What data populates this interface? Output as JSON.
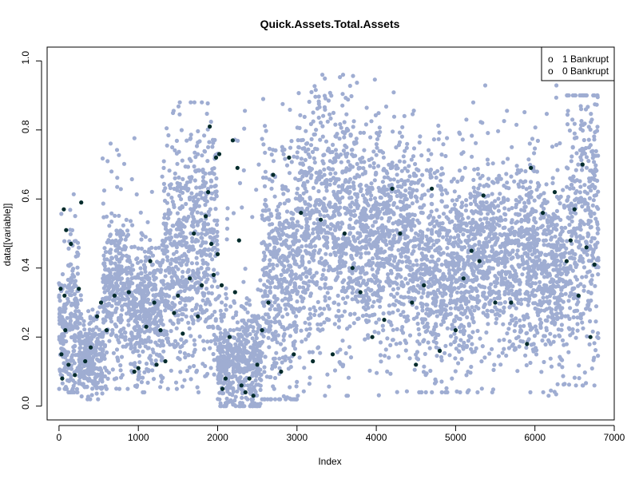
{
  "chart_data": {
    "type": "scatter",
    "title": "Quick.Assets.Total.Assets",
    "xlabel": "Index",
    "ylabel": "data[[variable]]",
    "xlim": [
      -150,
      7000
    ],
    "ylim": [
      -0.04,
      1.04
    ],
    "xticks": [
      0,
      1000,
      2000,
      3000,
      4000,
      5000,
      6000,
      7000
    ],
    "yticks": [
      0.0,
      0.2,
      0.4,
      0.6,
      0.8,
      1.0
    ],
    "xtick_labels": [
      "0",
      "1000",
      "2000",
      "3000",
      "4000",
      "5000",
      "6000",
      "7000"
    ],
    "ytick_labels": [
      "0.0",
      "0.2",
      "0.4",
      "0.6",
      "0.8",
      "1.0"
    ],
    "grid": false,
    "legend_position": "top-right",
    "colors": {
      "bankrupt_0": "#9fadd2",
      "bankrupt_1": "#002b2b"
    },
    "legend": [
      {
        "symbol": "o",
        "label": "1 Bankrupt"
      },
      {
        "symbol": "o",
        "label": "0 Bankrupt"
      }
    ],
    "series": [
      {
        "name": "0 Bankrupt",
        "note_n": 6600,
        "segments": [
          {
            "x": [
              0,
              100
            ],
            "mean": 0.22,
            "sd": 0.09,
            "min": 0.05,
            "max": 0.7
          },
          {
            "x": [
              100,
              250
            ],
            "mean": 0.25,
            "sd": 0.13,
            "min": 0.04,
            "max": 0.7
          },
          {
            "x": [
              250,
              550
            ],
            "mean": 0.15,
            "sd": 0.06,
            "min": 0.02,
            "max": 0.45
          },
          {
            "x": [
              550,
              900
            ],
            "mean": 0.33,
            "sd": 0.12,
            "min": 0.05,
            "max": 0.82
          },
          {
            "x": [
              900,
              1300
            ],
            "mean": 0.28,
            "sd": 0.11,
            "min": 0.04,
            "max": 0.9
          },
          {
            "x": [
              1300,
              1650
            ],
            "mean": 0.42,
            "sd": 0.16,
            "min": 0.05,
            "max": 0.94
          },
          {
            "x": [
              1650,
              2000
            ],
            "mean": 0.45,
            "sd": 0.18,
            "min": 0.04,
            "max": 0.88
          },
          {
            "x": [
              2000,
              2550
            ],
            "mean": 0.13,
            "sd": 0.08,
            "min": 0.0,
            "max": 0.87
          },
          {
            "x": [
              2550,
              3000
            ],
            "mean": 0.38,
            "sd": 0.18,
            "min": 0.02,
            "max": 0.99
          },
          {
            "x": [
              3000,
              3800
            ],
            "mean": 0.52,
            "sd": 0.19,
            "min": 0.03,
            "max": 0.96
          },
          {
            "x": [
              3800,
              4500
            ],
            "mean": 0.48,
            "sd": 0.15,
            "min": 0.03,
            "max": 0.95
          },
          {
            "x": [
              4500,
              5200
            ],
            "mean": 0.4,
            "sd": 0.15,
            "min": 0.04,
            "max": 0.9
          },
          {
            "x": [
              5200,
              6000
            ],
            "mean": 0.44,
            "sd": 0.14,
            "min": 0.04,
            "max": 0.93
          },
          {
            "x": [
              6000,
              6400
            ],
            "mean": 0.4,
            "sd": 0.14,
            "min": 0.03,
            "max": 0.98
          },
          {
            "x": [
              6400,
              6800
            ],
            "mean": 0.52,
            "sd": 0.2,
            "min": 0.06,
            "max": 0.9
          }
        ]
      },
      {
        "name": "1 Bankrupt",
        "points": [
          [
            20,
            0.34
          ],
          [
            30,
            0.15
          ],
          [
            40,
            0.08
          ],
          [
            60,
            0.57
          ],
          [
            70,
            0.32
          ],
          [
            80,
            0.22
          ],
          [
            90,
            0.51
          ],
          [
            120,
            0.12
          ],
          [
            150,
            0.47
          ],
          [
            200,
            0.09
          ],
          [
            250,
            0.34
          ],
          [
            280,
            0.59
          ],
          [
            330,
            0.13
          ],
          [
            400,
            0.17
          ],
          [
            480,
            0.26
          ],
          [
            530,
            0.3
          ],
          [
            600,
            0.22
          ],
          [
            700,
            0.32
          ],
          [
            880,
            0.33
          ],
          [
            950,
            0.1
          ],
          [
            1000,
            0.11
          ],
          [
            1100,
            0.23
          ],
          [
            1150,
            0.42
          ],
          [
            1200,
            0.3
          ],
          [
            1230,
            0.12
          ],
          [
            1280,
            0.22
          ],
          [
            1340,
            0.13
          ],
          [
            1450,
            0.27
          ],
          [
            1500,
            0.32
          ],
          [
            1560,
            0.21
          ],
          [
            1650,
            0.37
          ],
          [
            1700,
            0.5
          ],
          [
            1750,
            0.26
          ],
          [
            1800,
            0.35
          ],
          [
            1850,
            0.55
          ],
          [
            1880,
            0.62
          ],
          [
            1900,
            0.81
          ],
          [
            1920,
            0.47
          ],
          [
            1950,
            0.38
          ],
          [
            1980,
            0.72
          ],
          [
            2000,
            0.44
          ],
          [
            2020,
            0.73
          ],
          [
            2050,
            0.35
          ],
          [
            2060,
            0.05
          ],
          [
            2100,
            0.08
          ],
          [
            2150,
            0.2
          ],
          [
            2190,
            0.77
          ],
          [
            2220,
            0.33
          ],
          [
            2250,
            0.69
          ],
          [
            2270,
            0.48
          ],
          [
            2300,
            0.06
          ],
          [
            2350,
            0.04
          ],
          [
            2400,
            0.08
          ],
          [
            2450,
            0.03
          ],
          [
            2500,
            0.12
          ],
          [
            2560,
            0.22
          ],
          [
            2640,
            0.3
          ],
          [
            2700,
            0.67
          ],
          [
            2800,
            0.1
          ],
          [
            2900,
            0.72
          ],
          [
            2960,
            0.15
          ],
          [
            3050,
            0.56
          ],
          [
            3200,
            0.13
          ],
          [
            3300,
            0.54
          ],
          [
            3450,
            0.15
          ],
          [
            3600,
            0.5
          ],
          [
            3700,
            0.4
          ],
          [
            3800,
            0.33
          ],
          [
            3950,
            0.2
          ],
          [
            4100,
            0.25
          ],
          [
            4200,
            0.63
          ],
          [
            4300,
            0.5
          ],
          [
            4450,
            0.3
          ],
          [
            4500,
            0.12
          ],
          [
            4600,
            0.35
          ],
          [
            4700,
            0.63
          ],
          [
            4800,
            0.16
          ],
          [
            5000,
            0.22
          ],
          [
            5100,
            0.37
          ],
          [
            5200,
            0.45
          ],
          [
            5300,
            0.42
          ],
          [
            5350,
            0.61
          ],
          [
            5500,
            0.3
          ],
          [
            5700,
            0.3
          ],
          [
            5900,
            0.18
          ],
          [
            5950,
            0.69
          ],
          [
            6100,
            0.56
          ],
          [
            6250,
            0.62
          ],
          [
            6400,
            0.42
          ],
          [
            6450,
            0.48
          ],
          [
            6500,
            0.57
          ],
          [
            6550,
            0.32
          ],
          [
            6600,
            0.7
          ],
          [
            6650,
            0.46
          ],
          [
            6700,
            0.2
          ],
          [
            6750,
            0.41
          ]
        ]
      }
    ]
  }
}
